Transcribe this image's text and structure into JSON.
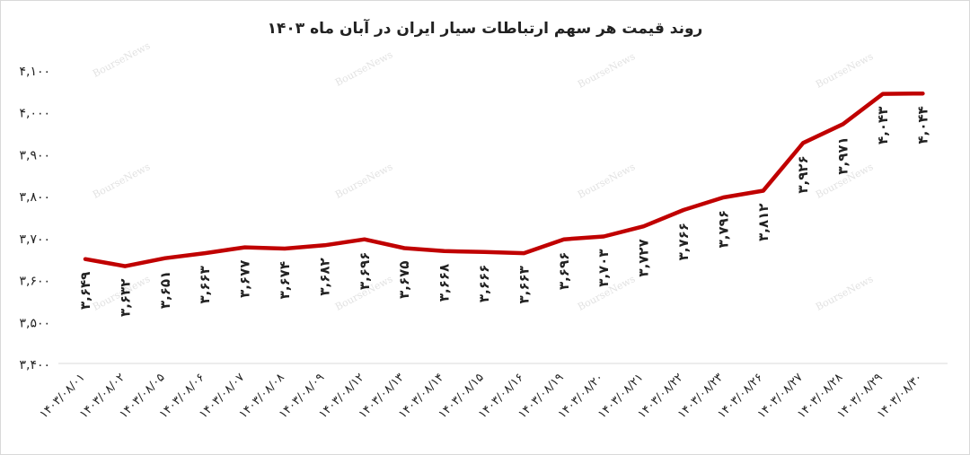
{
  "chart_data": {
    "type": "line",
    "title": "روند قیمت هر سهم ارتباطات سیار ایران در آبان ماه ۱۴۰۳",
    "xlabel": "",
    "ylabel": "",
    "ylim": [
      3400,
      4100
    ],
    "yticks": [
      "۳,۴۰۰",
      "۳,۵۰۰",
      "۳,۶۰۰",
      "۳,۷۰۰",
      "۳,۸۰۰",
      "۳,۹۰۰",
      "۴,۰۰۰",
      "۴,۱۰۰"
    ],
    "ytick_values": [
      3400,
      3500,
      3600,
      3700,
      3800,
      3900,
      4000,
      4100
    ],
    "categories": [
      "۱۴۰۳/۰۸/۰۱",
      "۱۴۰۳/۰۸/۰۲",
      "۱۴۰۳/۰۸/۰۵",
      "۱۴۰۳/۰۸/۰۶",
      "۱۴۰۳/۰۸/۰۷",
      "۱۴۰۳/۰۸/۰۸",
      "۱۴۰۳/۰۸/۰۹",
      "۱۴۰۳/۰۸/۱۲",
      "۱۴۰۳/۰۸/۱۳",
      "۱۴۰۳/۰۸/۱۴",
      "۱۴۰۳/۰۸/۱۵",
      "۱۴۰۳/۰۸/۱۶",
      "۱۴۰۳/۰۸/۱۹",
      "۱۴۰۳/۰۸/۲۰",
      "۱۴۰۳/۰۸/۲۱",
      "۱۴۰۳/۰۸/۲۲",
      "۱۴۰۳/۰۸/۲۳",
      "۱۴۰۳/۰۸/۲۶",
      "۱۴۰۳/۰۸/۲۷",
      "۱۴۰۳/۰۸/۲۸",
      "۱۴۰۳/۰۸/۲۹",
      "۱۴۰۳/۰۸/۳۰"
    ],
    "values": [
      3649,
      3632,
      3651,
      3663,
      3677,
      3674,
      3682,
      3696,
      3675,
      3668,
      3666,
      3663,
      3696,
      3703,
      3727,
      3766,
      3796,
      3812,
      3926,
      3971,
      4043,
      4044
    ],
    "data_labels": [
      "۳,۶۴۹",
      "۳,۶۳۲",
      "۳,۶۵۱",
      "۳,۶۶۳",
      "۳,۶۷۷",
      "۳,۶۷۴",
      "۳,۶۸۲",
      "۳,۶۹۶",
      "۳,۶۷۵",
      "۳,۶۶۸",
      "۳,۶۶۶",
      "۳,۶۶۳",
      "۳,۶۹۶",
      "۳,۷۰۳",
      "۳,۷۲۷",
      "۳,۷۶۶",
      "۳,۷۹۶",
      "۳,۸۱۲",
      "۳,۹۲۶",
      "۳,۹۷۱",
      "۴,۰۴۳",
      "۴,۰۴۴"
    ],
    "line_color": "#c00000",
    "grid": false,
    "legend": "none"
  },
  "watermark": "BourseNews"
}
